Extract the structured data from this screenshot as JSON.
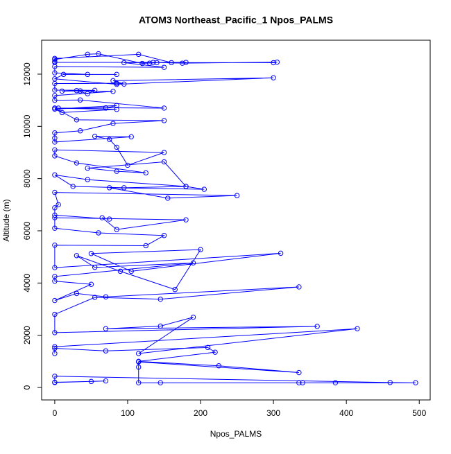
{
  "chart_data": {
    "type": "line",
    "title": "ATOM3 Northeast_Pacific_1 Npos_PALMS",
    "xlabel": "Npos_PALMS",
    "ylabel": "Altitude (m)",
    "color": "#0000ff",
    "markers": true,
    "grid": false,
    "xlim": [
      -18,
      515
    ],
    "xticks": [
      0,
      100,
      200,
      300,
      400,
      500
    ],
    "ylim": [
      -478,
      13300
    ],
    "yticks": [
      0,
      2000,
      4000,
      6000,
      8000,
      10000,
      12000
    ],
    "x": [
      0,
      50,
      70,
      0,
      0,
      460,
      495,
      385,
      340,
      335,
      145,
      115,
      115,
      115,
      335,
      225,
      115,
      220,
      210,
      70,
      0,
      0,
      0,
      415,
      115,
      190,
      145,
      70,
      360,
      0,
      0,
      55,
      145,
      335,
      70,
      30,
      0,
      50,
      0,
      0,
      190,
      55,
      30,
      90,
      165,
      200,
      50,
      105,
      310,
      0,
      0,
      125,
      150,
      60,
      0,
      0,
      180,
      85,
      65,
      75,
      0,
      0,
      5,
      0,
      250,
      155,
      75,
      205,
      180,
      95,
      25,
      0,
      45,
      180,
      150,
      45,
      85,
      125,
      30,
      0,
      0,
      150,
      100,
      85,
      75,
      55,
      105,
      0,
      0,
      0,
      35,
      80,
      150,
      30,
      0,
      85,
      10,
      0,
      85,
      70,
      0,
      5,
      70,
      150,
      35,
      0,
      0,
      80,
      35,
      10,
      30,
      45,
      55,
      0,
      0,
      85,
      95,
      80,
      300,
      85,
      0,
      12,
      85,
      45,
      0,
      0,
      150,
      95,
      180,
      0,
      0,
      0,
      115,
      160,
      300,
      305,
      175,
      135,
      130,
      140,
      120,
      60,
      45,
      0
    ],
    "values": [
      200,
      230,
      250,
      190,
      430,
      190,
      180,
      180,
      180,
      180,
      180,
      180,
      780,
      980,
      570,
      830,
      1000,
      1350,
      1530,
      1400,
      1500,
      1300,
      1560,
      2250,
      1300,
      2690,
      2350,
      2250,
      2340,
      2100,
      2800,
      3450,
      3380,
      3850,
      3470,
      3600,
      3330,
      3950,
      4070,
      4250,
      4770,
      4600,
      5050,
      4450,
      3750,
      5280,
      5130,
      4450,
      5140,
      4590,
      5450,
      5430,
      5820,
      5920,
      6100,
      6500,
      6420,
      6050,
      6500,
      6450,
      6600,
      6880,
      7000,
      7470,
      7350,
      7250,
      7650,
      7590,
      7700,
      7650,
      7700,
      8140,
      7960,
      7700,
      8640,
      8400,
      8280,
      8220,
      8600,
      8870,
      9100,
      9000,
      8510,
      9200,
      9500,
      9620,
      9600,
      9400,
      9550,
      9750,
      9830,
      10110,
      10220,
      10250,
      10700,
      10650,
      10530,
      10660,
      10800,
      10700,
      10700,
      10700,
      10710,
      10700,
      11010,
      11000,
      11180,
      11340,
      11360,
      11350,
      11370,
      11250,
      11380,
      11390,
      11640,
      11650,
      11620,
      11750,
      11860,
      11610,
      11820,
      11990,
      11990,
      11990,
      12050,
      12290,
      12260,
      12440,
      12450,
      12450,
      12480,
      12600,
      12760,
      12440,
      12440,
      12460,
      12420,
      12450,
      12420,
      12440,
      12410,
      12780,
      12760,
      12560
    ]
  }
}
